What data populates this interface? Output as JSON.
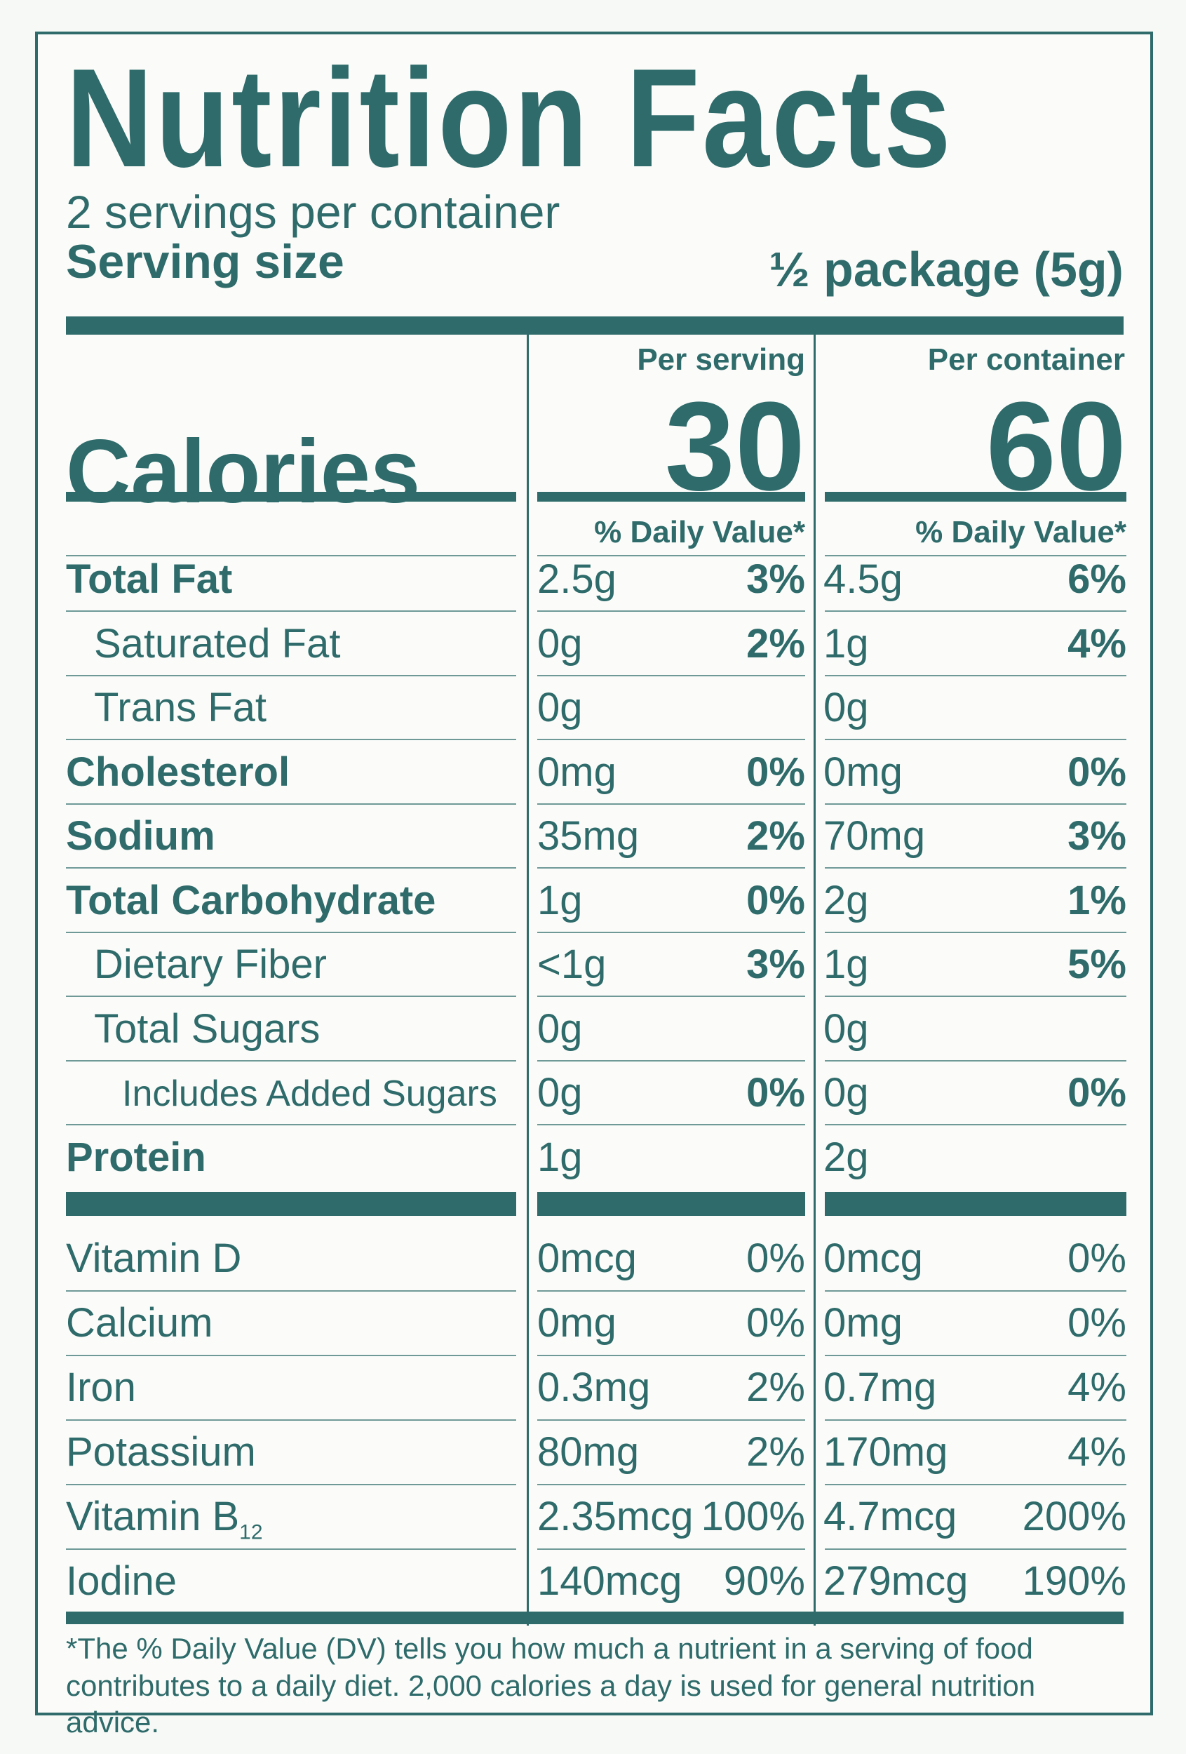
{
  "title": "Nutrition Facts",
  "servings_per_container": "2 servings per container",
  "serving_size_label": "Serving size",
  "serving_size_value": "½ package (5g)",
  "columns": {
    "per_serving": "Per serving",
    "per_container": "Per container"
  },
  "calories": {
    "label": "Calories",
    "per_serving": "30",
    "per_container": "60"
  },
  "daily_value_header": "% Daily Value*",
  "nutrients": [
    {
      "name": "Total Fat",
      "serving_amount": "2.5g",
      "serving_dv": "3%",
      "container_amount": "4.5g",
      "container_dv": "6%"
    },
    {
      "name": "Saturated Fat",
      "serving_amount": "0g",
      "serving_dv": "2%",
      "container_amount": "1g",
      "container_dv": "4%"
    },
    {
      "name": "Trans Fat",
      "serving_amount": "0g",
      "serving_dv": "",
      "container_amount": "0g",
      "container_dv": ""
    },
    {
      "name": "Cholesterol",
      "serving_amount": "0mg",
      "serving_dv": "0%",
      "container_amount": "0mg",
      "container_dv": "0%"
    },
    {
      "name": "Sodium",
      "serving_amount": "35mg",
      "serving_dv": "2%",
      "container_amount": "70mg",
      "container_dv": "3%"
    },
    {
      "name": "Total Carbohydrate",
      "serving_amount": "1g",
      "serving_dv": "0%",
      "container_amount": "2g",
      "container_dv": "1%"
    },
    {
      "name": "Dietary Fiber",
      "serving_amount": "<1g",
      "serving_dv": "3%",
      "container_amount": "1g",
      "container_dv": "5%"
    },
    {
      "name": "Total Sugars",
      "serving_amount": "0g",
      "serving_dv": "",
      "container_amount": "0g",
      "container_dv": ""
    },
    {
      "name": "Includes Added Sugars",
      "serving_amount": "0g",
      "serving_dv": "0%",
      "container_amount": "0g",
      "container_dv": "0%"
    },
    {
      "name": "Protein",
      "serving_amount": "1g",
      "serving_dv": "",
      "container_amount": "2g",
      "container_dv": ""
    }
  ],
  "vitamins": [
    {
      "name": "Vitamin D",
      "serving_amount": "0mcg",
      "serving_dv": "0%",
      "container_amount": "0mcg",
      "container_dv": "0%"
    },
    {
      "name": "Calcium",
      "serving_amount": "0mg",
      "serving_dv": "0%",
      "container_amount": "0mg",
      "container_dv": "0%"
    },
    {
      "name": "Iron",
      "serving_amount": "0.3mg",
      "serving_dv": "2%",
      "container_amount": "0.7mg",
      "container_dv": "4%"
    },
    {
      "name": "Potassium",
      "serving_amount": "80mg",
      "serving_dv": "2%",
      "container_amount": "170mg",
      "container_dv": "4%"
    },
    {
      "name": "Vitamin B",
      "name_sub": "12",
      "serving_amount": "2.35mcg",
      "serving_dv": "100%",
      "container_amount": "4.7mcg",
      "container_dv": "200%"
    },
    {
      "name": "Iodine",
      "serving_amount": "140mcg",
      "serving_dv": "90%",
      "container_amount": "279mcg",
      "container_dv": "190%"
    }
  ],
  "footnote": "*The % Daily Value (DV) tells you how much a nutrient in a serving of food contributes to a daily diet. 2,000 calories a day is used for general nutrition advice.",
  "colors": {
    "ink": "#2e6b6a",
    "background": "#fbfcfa"
  }
}
